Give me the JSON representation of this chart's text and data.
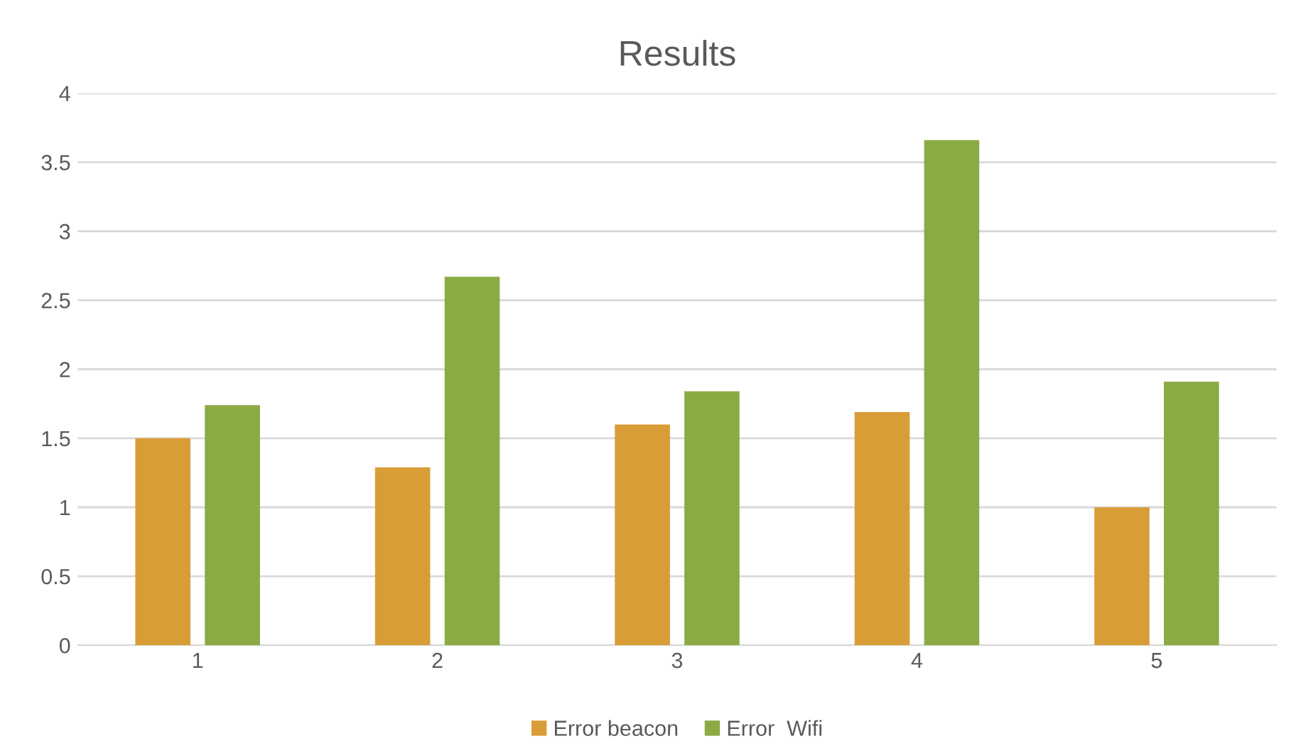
{
  "chart_data": {
    "type": "bar",
    "title": "Results",
    "categories": [
      "1",
      "2",
      "3",
      "4",
      "5"
    ],
    "series": [
      {
        "name": "Error beacon",
        "color": "#d99d38",
        "values": [
          1.5,
          1.29,
          1.6,
          1.69,
          1.0
        ]
      },
      {
        "name": "Error  Wifi",
        "color": "#8aab43",
        "values": [
          1.74,
          2.67,
          1.84,
          3.66,
          1.91
        ]
      }
    ],
    "ylim": [
      0,
      4
    ],
    "yticks": [
      0,
      0.5,
      1,
      1.5,
      2,
      2.5,
      3,
      3.5,
      4
    ],
    "grid": "y",
    "legend": "bottom"
  }
}
